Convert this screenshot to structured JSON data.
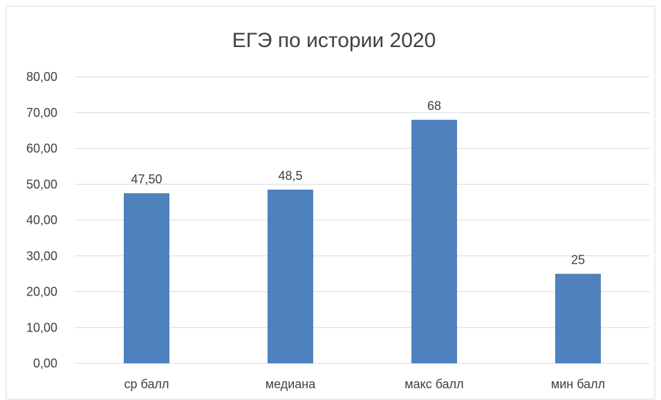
{
  "chart_data": {
    "type": "bar",
    "title": "ЕГЭ по истории 2020",
    "xlabel": "",
    "ylabel": "",
    "categories": [
      "ср балл",
      "медиана",
      "макс балл",
      "мин балл"
    ],
    "values": [
      47.5,
      48.5,
      68,
      25
    ],
    "data_labels": [
      "47,50",
      "48,5",
      "68",
      "25"
    ],
    "ylim": [
      0,
      80
    ],
    "yticks": [
      0,
      10,
      20,
      30,
      40,
      50,
      60,
      70,
      80
    ],
    "ytick_labels": [
      "0,00",
      "10,00",
      "20,00",
      "30,00",
      "40,00",
      "50,00",
      "60,00",
      "70,00",
      "80,00"
    ],
    "grid": true,
    "legend": "none",
    "colors": {
      "bar": "#4F81BD",
      "grid": "#D9D9D9",
      "text": "#404040",
      "border": "#D9D9D9"
    }
  }
}
